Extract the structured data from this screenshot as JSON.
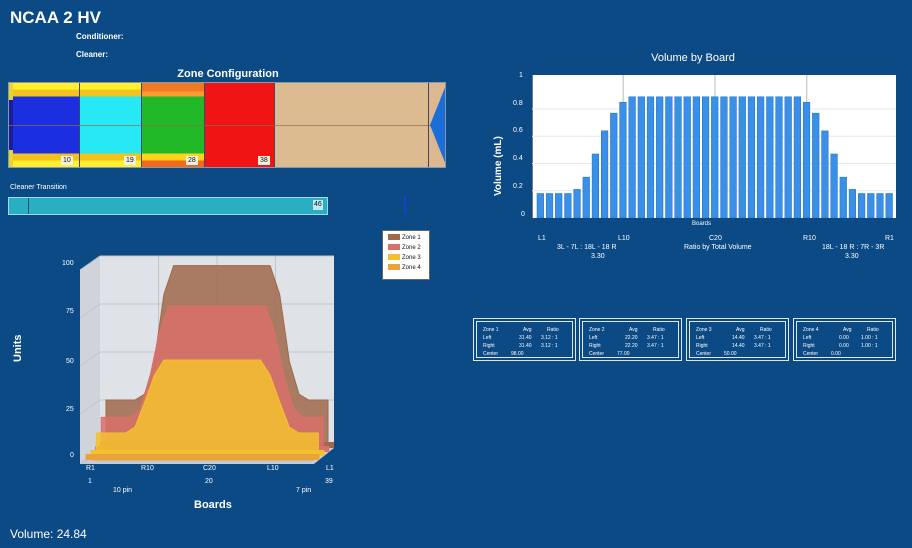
{
  "app": {
    "title": "NCAA 2 HV",
    "conditioner_label": "Conditioner:",
    "cleaner_label": "Cleaner:"
  },
  "zone_configuration": {
    "title": "Zone Configuration",
    "markers": [
      "10",
      "19",
      "28",
      "38"
    ]
  },
  "cleaner_transition": {
    "label": "Cleaner Transition",
    "value": "46",
    "fill_fraction": 0.46
  },
  "units_chart": {
    "legend": [
      "Zone 1",
      "Zone 2",
      "Zone 3",
      "Zone 4"
    ],
    "colors": [
      "#a0694a",
      "#d9706a",
      "#f3c12e",
      "#e9a23c"
    ],
    "y_ticks": [
      "100",
      "75",
      "50",
      "25",
      "0"
    ],
    "x_ticks": [
      "R1",
      "R10",
      "C20",
      "L10",
      "L1"
    ],
    "x_subticks": [
      "1",
      "10 pin",
      "20",
      "7 pin",
      "39"
    ],
    "ylabel": "Units",
    "xlabel": "Boards"
  },
  "volume_readout": "Volume: 24.84",
  "volume_by_board": {
    "title": "Volume by Board",
    "ylabel": "Volume (mL)",
    "xlabel": "Boards",
    "x_tick_labels": [
      "L1",
      "L10",
      "C20",
      "R10",
      "R1"
    ],
    "left_ratio_label": "3L - 7L : 18L - 18 R",
    "left_ratio_value": "3.30",
    "center_label": "Ratio by Total Volume",
    "right_ratio_label": "18L - 18 R : 7R - 3R",
    "right_ratio_value": "3.30",
    "y_ticks": [
      "1",
      "0.8",
      "0.6",
      "0.4",
      "0.2",
      "0"
    ]
  },
  "zone_summaries": [
    {
      "zone": "Zone 1",
      "avg_h": "Avg",
      "ratio_h": "Ratio",
      "left_label": "Left",
      "left_avg": "31.40",
      "left_ratio": "3.12 : 1",
      "right_label": "Right",
      "right_avg": "31.40",
      "right_ratio": "3.12 : 1",
      "center_label": "Center",
      "center_value": "98.00"
    },
    {
      "zone": "Zone 2",
      "avg_h": "Avg",
      "ratio_h": "Ratio",
      "left_label": "Left",
      "left_avg": "22.20",
      "left_ratio": "3.47 : 1",
      "right_label": "Right",
      "right_avg": "22.20",
      "right_ratio": "3.47 : 1",
      "center_label": "Center",
      "center_value": "77.00"
    },
    {
      "zone": "Zone 3",
      "avg_h": "Avg",
      "ratio_h": "Ratio",
      "left_label": "Left",
      "left_avg": "14.40",
      "left_ratio": "3.47 : 1",
      "right_label": "Right",
      "right_avg": "14.40",
      "right_ratio": "3.47 : 1",
      "center_label": "Center",
      "center_value": "50.00"
    },
    {
      "zone": "Zone 4",
      "avg_h": "Avg",
      "ratio_h": "Ratio",
      "left_label": "Left",
      "left_avg": "0.00",
      "left_ratio": "1.00 : 1",
      "right_label": "Right",
      "right_avg": "0.00",
      "right_ratio": "1.00 : 1",
      "center_label": "Center",
      "center_value": "0.00"
    }
  ],
  "chart_data": [
    {
      "type": "bar",
      "ylim": [
        0,
        1
      ],
      "categories": [
        "L1",
        "L2",
        "L3",
        "L4",
        "L5",
        "L6",
        "L7",
        "L8",
        "L9",
        "L10",
        "L11",
        "L12",
        "L13",
        "L14",
        "L15",
        "L16",
        "L17",
        "L18",
        "L19",
        "C20",
        "R19",
        "R18",
        "R17",
        "R16",
        "R15",
        "R14",
        "R13",
        "R12",
        "R11",
        "R10",
        "R9",
        "R8",
        "R7",
        "R6",
        "R5",
        "R4",
        "R3",
        "R2",
        "R1"
      ],
      "values": [
        0.18,
        0.18,
        0.18,
        0.18,
        0.21,
        0.3,
        0.47,
        0.64,
        0.77,
        0.85,
        0.89,
        0.89,
        0.89,
        0.89,
        0.89,
        0.89,
        0.89,
        0.89,
        0.89,
        0.89,
        0.89,
        0.89,
        0.89,
        0.89,
        0.89,
        0.89,
        0.89,
        0.89,
        0.89,
        0.85,
        0.77,
        0.64,
        0.47,
        0.3,
        0.21,
        0.18,
        0.18,
        0.18,
        0.18
      ]
    },
    {
      "type": "area",
      "ylim": [
        0,
        100
      ],
      "series": [
        {
          "name": "Zone 1",
          "values": [
            25,
            25,
            25,
            25,
            28,
            45,
            80,
            95,
            95,
            95,
            95,
            95,
            95,
            95,
            95,
            95,
            95,
            95,
            80,
            45,
            28,
            25,
            25,
            25
          ]
        },
        {
          "name": "Zone 2",
          "values": [
            18,
            18,
            18,
            18,
            22,
            38,
            62,
            76,
            76,
            76,
            76,
            76,
            76,
            76,
            76,
            76,
            76,
            76,
            62,
            38,
            22,
            18,
            18,
            18
          ]
        },
        {
          "name": "Zone 3",
          "values": [
            12,
            12,
            12,
            12,
            15,
            28,
            42,
            50,
            50,
            50,
            50,
            50,
            50,
            50,
            50,
            50,
            50,
            50,
            42,
            28,
            15,
            12,
            12,
            12
          ]
        },
        {
          "name": "Zone 4",
          "values": [
            0,
            0,
            0,
            0,
            0,
            0,
            0,
            0,
            0,
            0,
            0,
            0,
            0,
            0,
            0,
            0,
            0,
            0,
            0,
            0,
            0,
            0,
            0,
            0
          ]
        }
      ]
    }
  ]
}
